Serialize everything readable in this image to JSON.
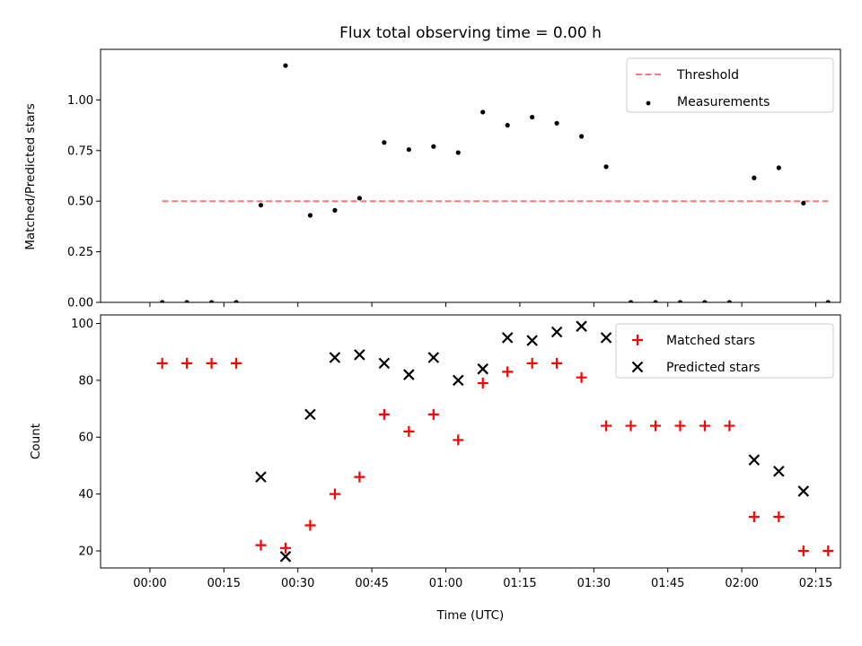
{
  "figure": {
    "title": "Flux total observing time = 0.00 h",
    "xlabel": "Time (UTC)",
    "x_tick_labels": [
      "00:00",
      "00:15",
      "00:30",
      "00:45",
      "01:00",
      "01:15",
      "01:30",
      "01:45",
      "02:00",
      "02:15"
    ]
  },
  "chart_data": [
    {
      "type": "scatter",
      "panel": "top",
      "ylabel": "Matched/Predicted stars",
      "xlim_minutes": [
        -10,
        140
      ],
      "ylim": [
        0,
        1.25
      ],
      "y_ticks": [
        0.0,
        0.25,
        0.5,
        0.75,
        1.0
      ],
      "y_tick_labels": [
        "0.00",
        "0.25",
        "0.50",
        "0.75",
        "1.00"
      ],
      "legend_position": "top-right",
      "series": [
        {
          "name": "Threshold",
          "kind": "line",
          "style": "dashed",
          "color": "#ff7777",
          "x_time": [
            "00:02:30",
            "02:17:30"
          ],
          "y": [
            0.5,
            0.5
          ]
        },
        {
          "name": "Measurements",
          "kind": "points",
          "color": "#000000",
          "x_time": [
            "00:02:30",
            "00:07:30",
            "00:12:30",
            "00:17:30",
            "00:22:30",
            "00:27:30",
            "00:32:30",
            "00:37:30",
            "00:42:30",
            "00:47:30",
            "00:52:30",
            "00:57:30",
            "01:02:30",
            "01:07:30",
            "01:12:30",
            "01:17:30",
            "01:22:30",
            "01:27:30",
            "01:32:30",
            "01:37:30",
            "01:42:30",
            "01:47:30",
            "01:52:30",
            "01:57:30",
            "02:02:30",
            "02:07:30",
            "02:12:30",
            "02:17:30"
          ],
          "y": [
            0.0,
            0.0,
            0.0,
            0.0,
            0.48,
            1.17,
            0.43,
            0.455,
            0.515,
            0.79,
            0.755,
            0.77,
            0.74,
            0.94,
            0.875,
            0.915,
            0.885,
            0.82,
            0.67,
            0.0,
            0.0,
            0.0,
            0.0,
            0.0,
            0.615,
            0.665,
            0.49,
            0.0
          ]
        }
      ]
    },
    {
      "type": "scatter",
      "panel": "bottom",
      "ylabel": "Count",
      "xlim_minutes": [
        -10,
        140
      ],
      "ylim": [
        14,
        103
      ],
      "y_ticks": [
        20,
        40,
        60,
        80,
        100
      ],
      "y_tick_labels": [
        "20",
        "40",
        "60",
        "80",
        "100"
      ],
      "legend_position": "top-right",
      "series": [
        {
          "name": "Matched stars",
          "kind": "plus",
          "color": "#ff0000",
          "x_time": [
            "00:02:30",
            "00:07:30",
            "00:12:30",
            "00:17:30",
            "00:22:30",
            "00:27:30",
            "00:32:30",
            "00:37:30",
            "00:42:30",
            "00:47:30",
            "00:52:30",
            "00:57:30",
            "01:02:30",
            "01:07:30",
            "01:12:30",
            "01:17:30",
            "01:22:30",
            "01:27:30",
            "01:32:30",
            "01:37:30",
            "01:42:30",
            "01:47:30",
            "01:52:30",
            "01:57:30",
            "02:02:30",
            "02:07:30",
            "02:12:30",
            "02:17:30"
          ],
          "y": [
            86,
            86,
            86,
            86,
            22,
            21,
            29,
            40,
            46,
            68,
            62,
            68,
            59,
            79,
            83,
            86,
            86,
            81,
            64,
            64,
            64,
            64,
            64,
            64,
            32,
            32,
            20,
            20
          ]
        },
        {
          "name": "Predicted stars",
          "kind": "cross",
          "color": "#000000",
          "x_time": [
            "00:22:30",
            "00:27:30",
            "00:32:30",
            "00:37:30",
            "00:42:30",
            "00:47:30",
            "00:52:30",
            "00:57:30",
            "01:02:30",
            "01:07:30",
            "01:12:30",
            "01:17:30",
            "01:22:30",
            "01:27:30",
            "01:32:30",
            "02:02:30",
            "02:07:30",
            "02:12:30"
          ],
          "y": [
            46,
            18,
            68,
            88,
            89,
            86,
            82,
            88,
            80,
            84,
            95,
            94,
            97,
            99,
            95,
            52,
            48,
            41
          ]
        }
      ]
    }
  ]
}
